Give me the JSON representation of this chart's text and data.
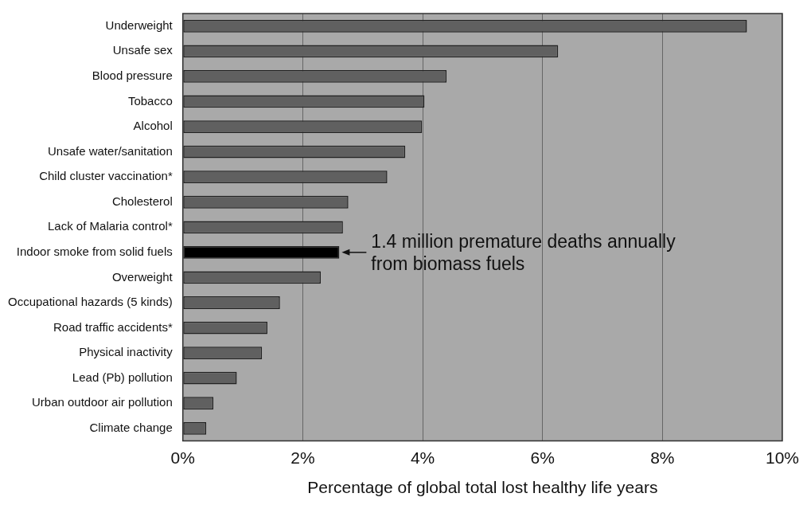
{
  "chart_data": {
    "type": "bar",
    "orientation": "horizontal",
    "xlabel": "Percentage of global total lost healthy life years",
    "categories": [
      "Underweight",
      "Unsafe sex",
      "Blood pressure",
      "Tobacco",
      "Alcohol",
      "Unsafe water/sanitation",
      "Child cluster vaccination*",
      "Cholesterol",
      "Lack of Malaria control*",
      "Indoor smoke from solid fuels",
      "Overweight",
      "Occupational hazards (5 kinds)",
      "Road traffic accidents*",
      "Physical inactivity",
      "Lead (Pb) pollution",
      "Urban outdoor air pollution",
      "Climate change"
    ],
    "values": [
      9.41,
      6.26,
      4.4,
      4.03,
      3.99,
      3.71,
      3.41,
      2.76,
      2.67,
      2.61,
      2.3,
      1.62,
      1.41,
      1.32,
      0.9,
      0.51,
      0.39
    ],
    "colors": [
      "#606060",
      "#606060",
      "#606060",
      "#606060",
      "#606060",
      "#606060",
      "#606060",
      "#606060",
      "#606060",
      "#000000",
      "#606060",
      "#606060",
      "#606060",
      "#606060",
      "#606060",
      "#606060",
      "#606060"
    ],
    "xlim": [
      0,
      10
    ],
    "xticks": [
      {
        "value": 0,
        "label": "0%"
      },
      {
        "value": 2,
        "label": "2%"
      },
      {
        "value": 4,
        "label": "4%"
      },
      {
        "value": 6,
        "label": "6%"
      },
      {
        "value": 8,
        "label": "8%"
      },
      {
        "value": 10,
        "label": "10%"
      }
    ],
    "grid": "x",
    "legend": false,
    "annotations": [
      {
        "text": "1.4 million premature deaths annually from biomass fuels",
        "x": 2.61,
        "y": "Indoor smoke from solid fuels"
      }
    ]
  }
}
